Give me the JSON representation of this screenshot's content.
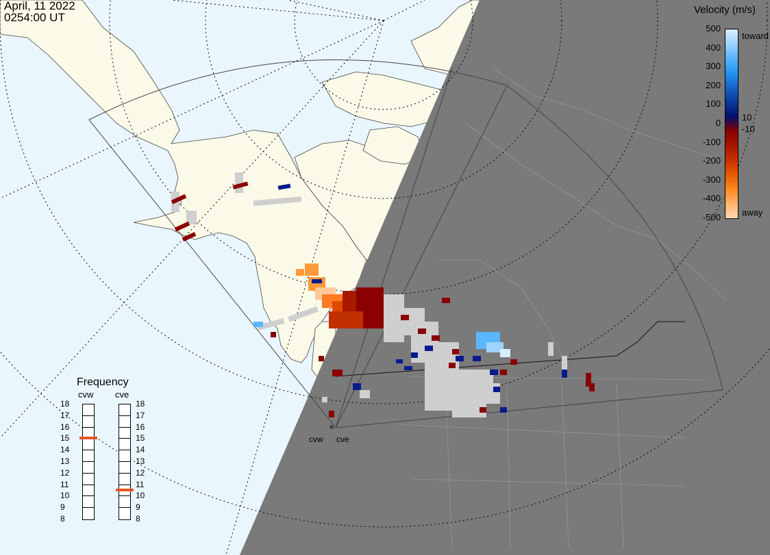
{
  "header": {
    "date": "April, 11 2022",
    "time": "0254:00 UT"
  },
  "velocity_scale": {
    "title": "Velocity (m/s)",
    "ticks": [
      "500",
      "400",
      "300",
      "200",
      "100",
      "0",
      "-100",
      "-200",
      "-300",
      "-400",
      "-500"
    ],
    "toward_label": "toward",
    "away_label": "away",
    "threshold_pos": "10",
    "threshold_neg": "-10",
    "colors": [
      "#d9efff",
      "#9ed4ff",
      "#57b4ff",
      "#2592f2",
      "#1563c8",
      "#0a3a9a",
      "#04106e",
      "#8a0000",
      "#a81600",
      "#c83200",
      "#e55a00",
      "#ff8a1e",
      "#ffb36b",
      "#ffd8b0"
    ]
  },
  "frequency": {
    "title": "Frequency",
    "radars": [
      {
        "name": "cvw",
        "value_mhz": 15
      },
      {
        "name": "cve",
        "value_mhz": 10.5
      }
    ],
    "ticks": [
      "18",
      "17",
      "16",
      "15",
      "14",
      "13",
      "12",
      "11",
      "10",
      "9",
      "8"
    ]
  },
  "radar_sites": [
    "cvw",
    "cve"
  ],
  "colors": {
    "ocean": "#eaf6fd",
    "land": "#fbf9e8",
    "night": "#7a7a7a",
    "marker": "#e55527"
  }
}
